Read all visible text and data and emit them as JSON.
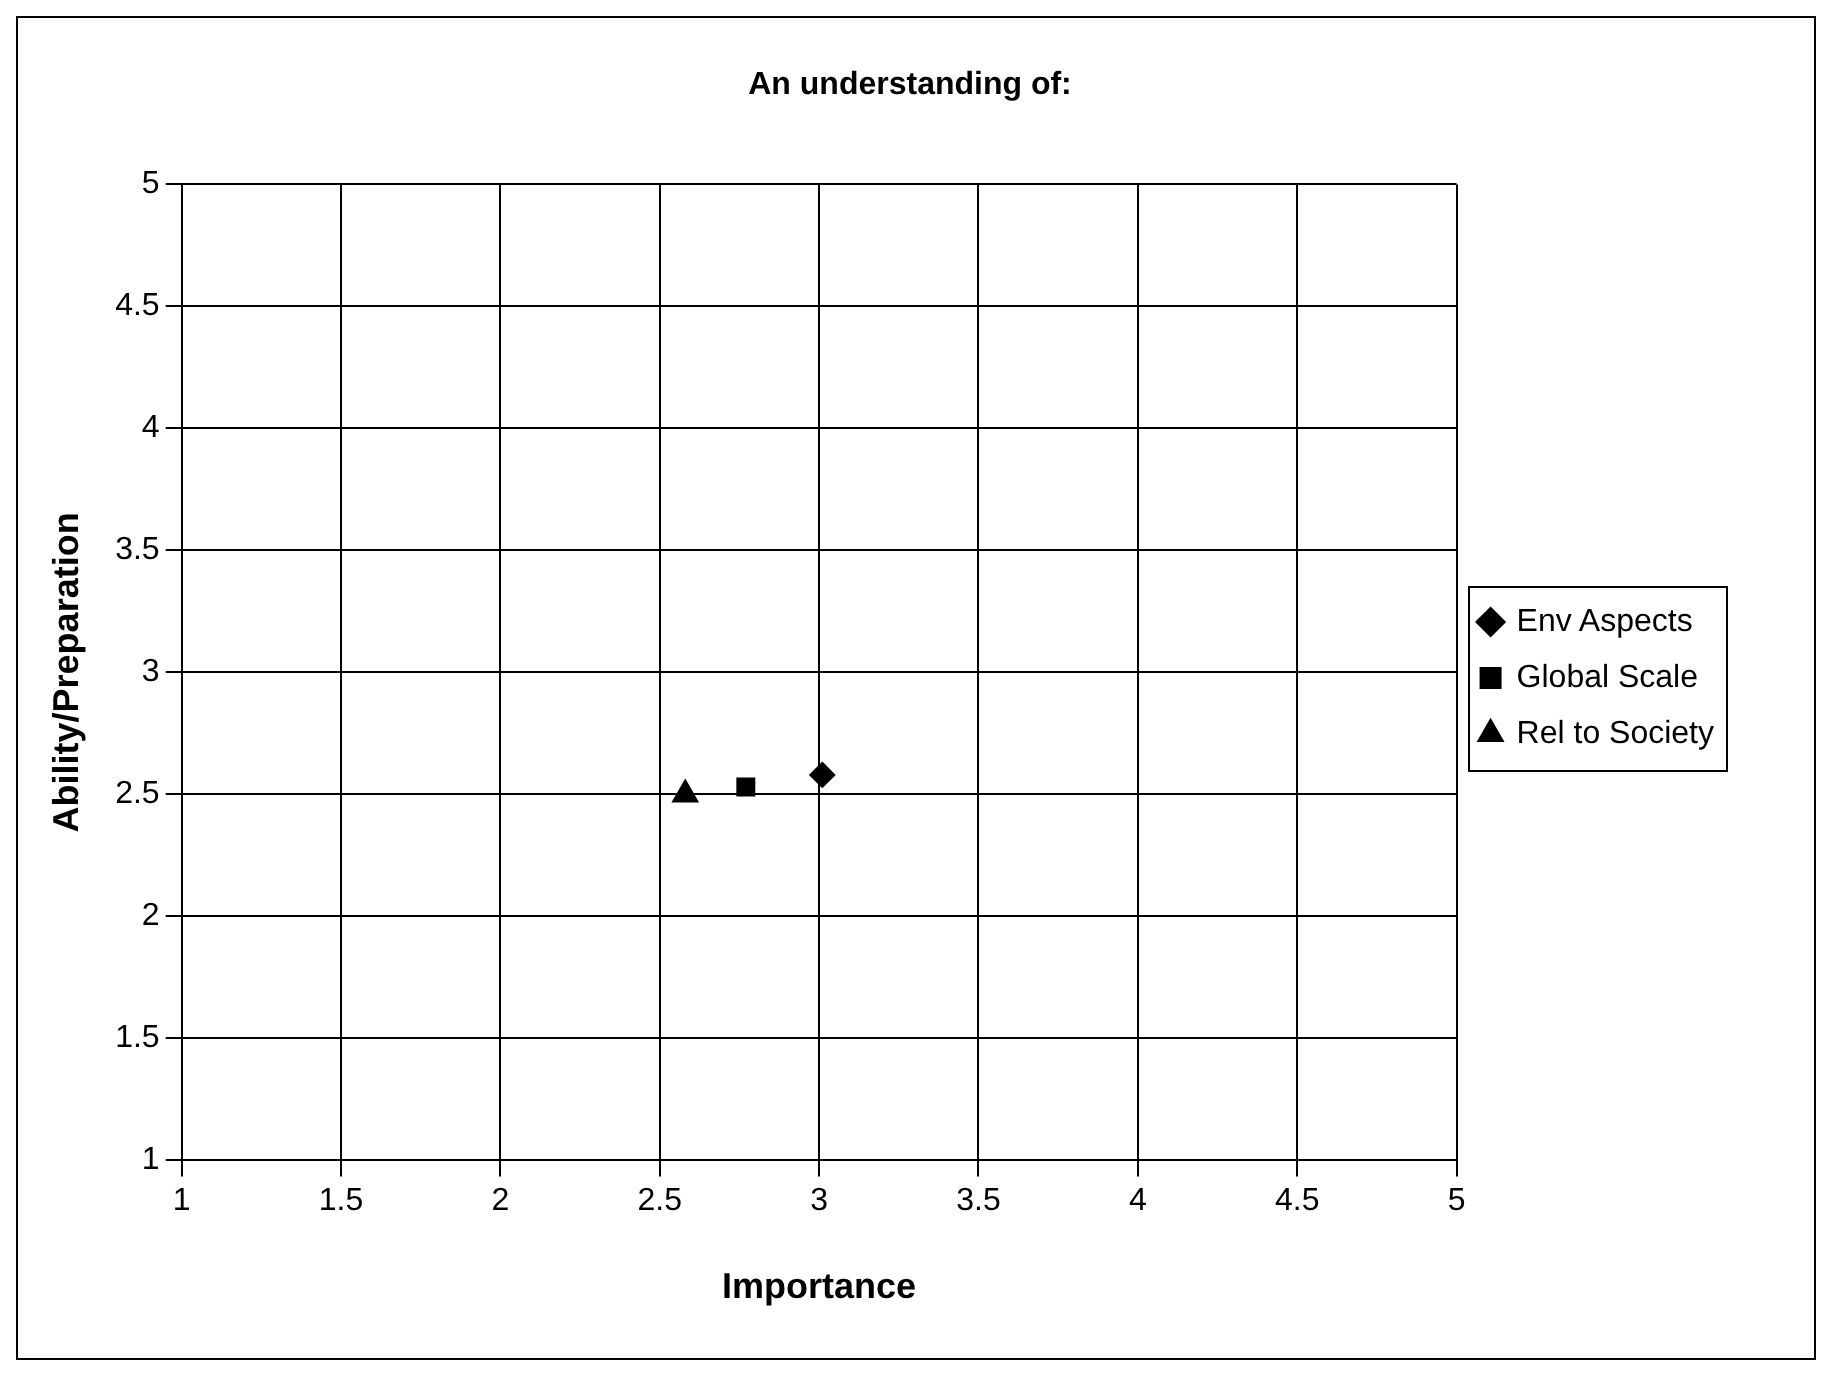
{
  "chart_data": {
    "type": "scatter",
    "title": "An understanding of:",
    "xlabel": "Importance",
    "ylabel": "Ability/Preparation",
    "series": [
      {
        "name": "Env Aspects",
        "color": "#000000",
        "marker": "diamond",
        "x": [
          3.01
        ],
        "values": [
          2.58
        ]
      },
      {
        "name": "Global Scale",
        "color": "#000000",
        "marker": "square",
        "x": [
          2.77
        ],
        "values": [
          2.53
        ]
      },
      {
        "name": "Rel to Society",
        "color": "#000000",
        "marker": "triangle",
        "x": [
          2.58
        ],
        "values": [
          2.5
        ]
      }
    ],
    "xlim": [
      1,
      5
    ],
    "xticks": [
      1,
      1.5,
      2,
      2.5,
      3,
      3.5,
      4,
      4.5,
      5
    ],
    "ylim": [
      1,
      5
    ],
    "yticks": [
      1,
      1.5,
      2,
      2.5,
      3,
      3.5,
      4,
      4.5,
      5
    ],
    "grid": true,
    "legend": "right"
  }
}
